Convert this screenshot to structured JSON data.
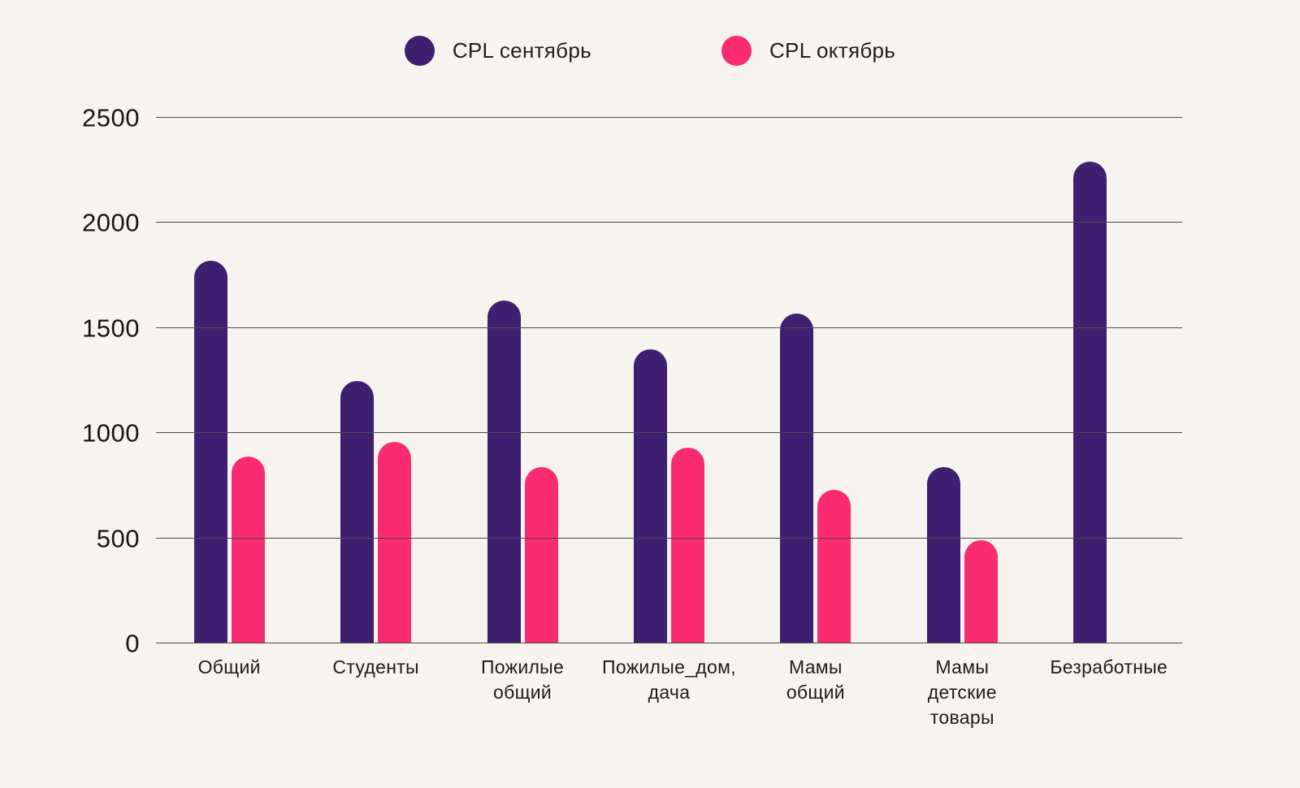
{
  "chart_data": {
    "type": "bar",
    "title": "",
    "xlabel": "",
    "ylabel": "",
    "categories": [
      "Общий",
      "Студенты",
      "Пожилые\nобщий",
      "Пожилые_дом,\nдача",
      "Мамы\nобщий",
      "Мамы\nдетские\nтовары",
      "Безработные"
    ],
    "series": [
      {
        "name": "CPL сентябрь",
        "color": "#3e1f70",
        "values": [
          1820,
          1250,
          1630,
          1400,
          1570,
          840,
          2290
        ]
      },
      {
        "name": "CPL октябрь",
        "color": "#fb2b71",
        "values": [
          890,
          960,
          840,
          930,
          730,
          490,
          null
        ]
      }
    ],
    "ylim": [
      0,
      2500
    ],
    "yticks": [
      0,
      500,
      1000,
      1500,
      2000,
      2500
    ],
    "grid": true,
    "legend_position": "top-center",
    "background_color": "#f7f4f0",
    "gridline_color": "#4a4a4a"
  }
}
